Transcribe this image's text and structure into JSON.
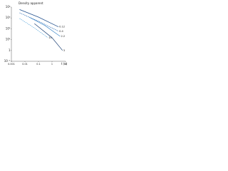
{
  "chart_data": {
    "type": "line",
    "title": "Density apparent",
    "xlabel": "t (s)",
    "log_x": true,
    "log_y": true,
    "xlim": [
      0.001,
      10
    ],
    "xticks": [
      0.001,
      0.01,
      0.1,
      1,
      10
    ],
    "ylim": [
      0.1,
      10000
    ],
    "yticks": [
      {
        "value": 0.1,
        "label": "10⁻¹"
      },
      {
        "value": 1,
        "label": "1"
      },
      {
        "value": 10,
        "label": "10¹"
      },
      {
        "value": 100,
        "label": "10²"
      },
      {
        "value": 1000,
        "label": "10³"
      },
      {
        "value": 10000,
        "label": "10⁴"
      }
    ],
    "series": [
      {
        "name": "0.12",
        "color": "#1f4e8c",
        "x": [
          0.004,
          0.1,
          3
        ],
        "values": [
          6000,
          1200,
          150
        ]
      },
      {
        "name": "0.4",
        "color": "#2a6bb5",
        "x": [
          0.004,
          0.1,
          3
        ],
        "values": [
          3000,
          500,
          60
        ]
      },
      {
        "name": "2.2",
        "color": "#3a86c8",
        "x": [
          0.02,
          0.3,
          4
        ],
        "values": [
          1200,
          200,
          20
        ]
      },
      {
        "name": "10",
        "color": "#5aa7dc",
        "x": [
          0.004,
          0.05,
          0.5
        ],
        "values": [
          900,
          120,
          15
        ]
      },
      {
        "name": "3",
        "color": "#1a3f73",
        "x": [
          0.05,
          1,
          6
        ],
        "values": [
          300,
          15,
          1
        ]
      }
    ]
  }
}
